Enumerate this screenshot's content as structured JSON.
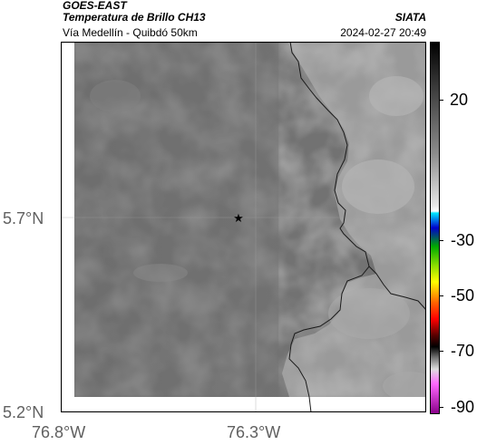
{
  "header": {
    "satellite": "GOES-EAST",
    "product": "Temperatura de Brillo CH13",
    "region": "Vía Medellín - Quibdó 50km",
    "organization": "SIATA",
    "timestamp": "2024-02-27 20:49"
  },
  "map": {
    "axes": {
      "y_ticks": [
        "5.7°N",
        "5.2°N"
      ],
      "x_ticks": [
        "76.8°W",
        "76.3°W"
      ]
    },
    "marker": {
      "symbol": "★",
      "icon": "star-icon"
    },
    "colors": {
      "land_gray": "#787878",
      "frame": "#000000",
      "tick_text": "#606060"
    }
  },
  "colorbar": {
    "ticks": [
      "20",
      "-30",
      "-50",
      "-70",
      "-90"
    ]
  }
}
